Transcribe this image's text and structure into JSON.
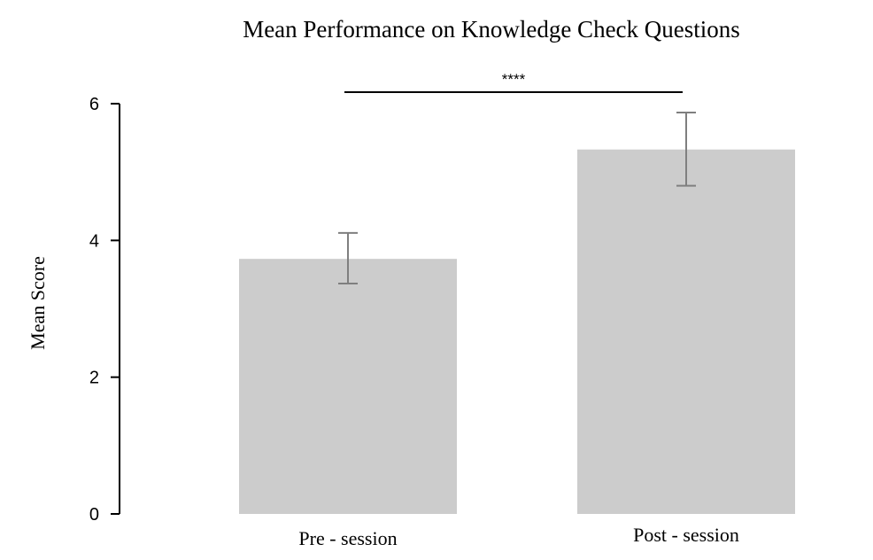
{
  "chart_data": {
    "type": "bar",
    "title": "Mean Performance on Knowledge Check Questions",
    "ylabel": "Mean Score",
    "xlabel": "",
    "categories": [
      "Pre - session",
      "Post - session"
    ],
    "values": [
      3.73,
      5.33
    ],
    "error_low": [
      3.37,
      4.8
    ],
    "error_high": [
      4.11,
      5.87
    ],
    "ylim": [
      0,
      6
    ],
    "yticks": [
      0,
      2,
      4,
      6
    ],
    "ytick_labels": [
      "0",
      "2",
      "4",
      "6"
    ],
    "bar_color": "#cccccc",
    "errorbar_color": "#7f7f7f",
    "grid": false,
    "significance": {
      "label": "****",
      "between": [
        "Pre - session",
        "Post - session"
      ]
    }
  }
}
